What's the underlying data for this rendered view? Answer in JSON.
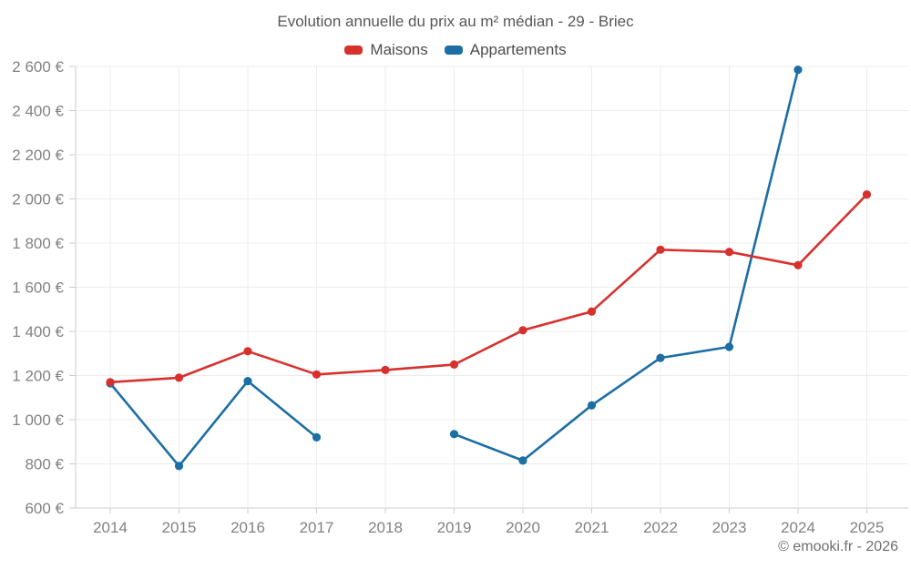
{
  "title": "Evolution annuelle du prix au m² médian - 29 - Briec",
  "footer": "© emooki.fr - 2026",
  "colors": {
    "maisons": "#d7312e",
    "appartements": "#1c6ea4",
    "gridline": "#ececec",
    "axis": "#cccccc",
    "tick_label": "#828282",
    "title_text": "#575757",
    "footer_text": "#6f6f6f"
  },
  "chart_data": {
    "type": "line",
    "title": "Evolution annuelle du prix au m² médian - 29 - Briec",
    "categories": [
      "2014",
      "2015",
      "2016",
      "2017",
      "2018",
      "2019",
      "2020",
      "2021",
      "2022",
      "2023",
      "2024",
      "2025"
    ],
    "series": [
      {
        "name": "Maisons",
        "color": "#d7312e",
        "values": [
          1170,
          1190,
          1310,
          1205,
          1225,
          1250,
          1405,
          1490,
          1770,
          1760,
          1700,
          2020
        ]
      },
      {
        "name": "Appartements",
        "color": "#1c6ea4",
        "values": [
          1165,
          790,
          1175,
          920,
          null,
          935,
          815,
          1065,
          1280,
          1330,
          2585,
          null
        ]
      }
    ],
    "xlabel": "",
    "ylabel": "",
    "ylim": [
      600,
      2600
    ],
    "ytick_step": 200,
    "ytick_suffix": " €",
    "grid": true,
    "legend_position": "top-center",
    "missing_points": [
      "Appartements 2018",
      "Appartements 2025"
    ]
  }
}
